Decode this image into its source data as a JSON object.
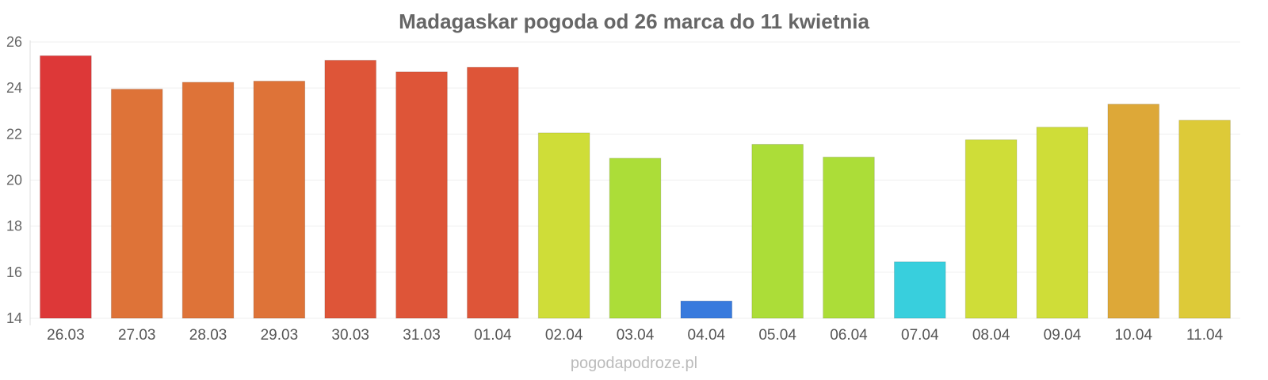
{
  "chart_data": {
    "type": "bar",
    "title": "Madagaskar pogoda od 26 marca do 11 kwietnia",
    "xlabel": "",
    "ylabel": "",
    "ylim": [
      14,
      26
    ],
    "yticks": [
      "14",
      "16",
      "18",
      "20",
      "22",
      "24",
      "26"
    ],
    "grid": true,
    "legend": "none",
    "categories": [
      "26.03",
      "27.03",
      "28.03",
      "29.03",
      "30.03",
      "31.03",
      "01.04",
      "02.04",
      "03.04",
      "04.04",
      "05.04",
      "06.04",
      "07.04",
      "08.04",
      "09.04",
      "10.04",
      "11.04"
    ],
    "values": [
      25.4,
      23.95,
      24.25,
      24.3,
      25.2,
      24.7,
      24.9,
      22.05,
      20.95,
      14.75,
      21.55,
      21.0,
      16.45,
      21.75,
      22.3,
      23.3,
      22.6
    ],
    "colors": [
      "#dc3232",
      "#dd6e32",
      "#dd6e32",
      "#dd6e32",
      "#dd4f32",
      "#dd4f32",
      "#dd4f32",
      "#cddc32",
      "#a9dc32",
      "#3276dc",
      "#a9dc32",
      "#a9dc32",
      "#32cddc",
      "#cddc32",
      "#cddc32",
      "#dca532",
      "#dcc832"
    ]
  },
  "watermark": "pogodapodroze.pl"
}
